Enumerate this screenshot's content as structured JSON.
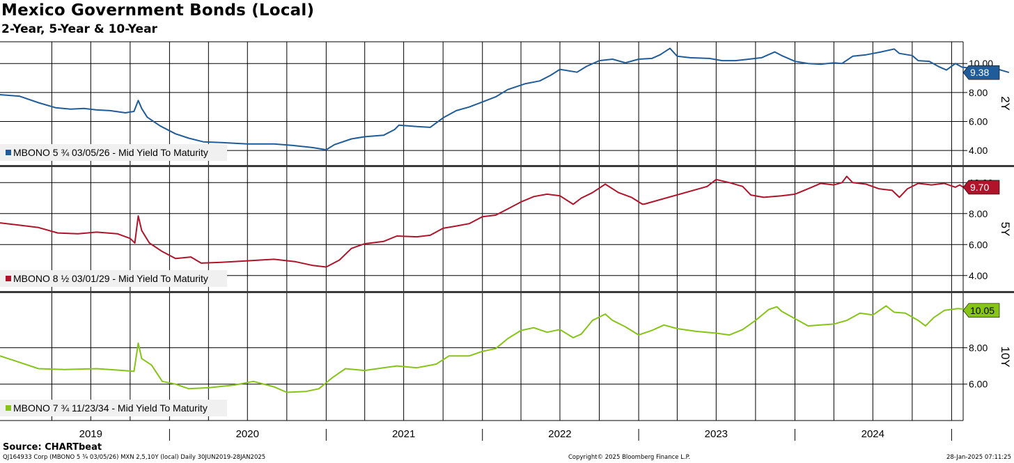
{
  "title": "Mexico Government Bonds (Local)",
  "subtitle": "2-Year, 5-Year & 10-Year",
  "source": "Source: CHARTbeat",
  "footer": {
    "left": "QJ164933 Corp (MBONO 5 ¾ 03/05/26) MXN 2,5,10Y (local)  Daily 30JUN2019-28JAN2025",
    "center": "Copyright© 2025 Bloomberg Finance L.P.",
    "right": "28-Jan-2025 07:11:25"
  },
  "chart_data": {
    "type": "line",
    "x_axis": {
      "range": [
        "2018-12-01",
        "2025-01-28"
      ],
      "year_labels": [
        "2019",
        "2020",
        "2021",
        "2022",
        "2023",
        "2024"
      ],
      "year_label_dates": [
        "2019-07-01",
        "2020-07-01",
        "2021-07-01",
        "2022-07-01",
        "2023-07-01",
        "2024-07-01"
      ],
      "gridline_dates": [
        "2019-04-01",
        "2019-07-01",
        "2019-10-01",
        "2020-01-01",
        "2020-04-01",
        "2020-07-01",
        "2020-10-01",
        "2021-01-01",
        "2021-04-01",
        "2021-07-01",
        "2021-10-01",
        "2022-01-01",
        "2022-04-01",
        "2022-07-01",
        "2022-10-01",
        "2023-01-01",
        "2023-04-01",
        "2023-07-01",
        "2023-10-01",
        "2024-01-01",
        "2024-04-01",
        "2024-07-01",
        "2024-10-01",
        "2025-01-01"
      ],
      "year_boundary_dates": [
        "2020-01-01",
        "2021-01-01",
        "2022-01-01",
        "2023-01-01",
        "2024-01-01",
        "2025-01-01"
      ]
    },
    "panels": [
      {
        "label": "2Y",
        "series_name": "MBONO 5 ¾ 03/05/26 - Mid Yield To Maturity",
        "color": "#1f5c99",
        "last_value": "9.38",
        "ylim": [
          3.0,
          11.5
        ],
        "yticks": [
          4.0,
          6.0,
          8.0,
          10.0
        ],
        "ytick_labels": [
          "4.00",
          "6.00",
          "8.00",
          "10.00"
        ],
        "points": [
          [
            "2018-12-01",
            7.85
          ],
          [
            "2019-01-15",
            7.75
          ],
          [
            "2019-03-01",
            7.3
          ],
          [
            "2019-04-10",
            6.95
          ],
          [
            "2019-05-15",
            6.85
          ],
          [
            "2019-06-15",
            6.9
          ],
          [
            "2019-07-15",
            6.8
          ],
          [
            "2019-08-15",
            6.75
          ],
          [
            "2019-09-20",
            6.6
          ],
          [
            "2019-10-10",
            6.7
          ],
          [
            "2019-10-20",
            7.45
          ],
          [
            "2019-10-28",
            6.9
          ],
          [
            "2019-11-10",
            6.3
          ],
          [
            "2019-12-10",
            5.7
          ],
          [
            "2020-01-15",
            5.15
          ],
          [
            "2020-02-15",
            4.85
          ],
          [
            "2020-03-20",
            4.6
          ],
          [
            "2020-05-01",
            4.55
          ],
          [
            "2020-07-01",
            4.45
          ],
          [
            "2020-09-01",
            4.45
          ],
          [
            "2020-10-15",
            4.35
          ],
          [
            "2020-12-01",
            4.2
          ],
          [
            "2021-01-01",
            4.05
          ],
          [
            "2021-01-20",
            4.4
          ],
          [
            "2021-03-01",
            4.8
          ],
          [
            "2021-04-01",
            4.95
          ],
          [
            "2021-05-15",
            5.05
          ],
          [
            "2021-06-10",
            5.45
          ],
          [
            "2021-06-20",
            5.75
          ],
          [
            "2021-08-01",
            5.65
          ],
          [
            "2021-09-01",
            5.6
          ],
          [
            "2021-10-01",
            6.25
          ],
          [
            "2021-11-01",
            6.75
          ],
          [
            "2021-12-01",
            7.0
          ],
          [
            "2022-01-01",
            7.35
          ],
          [
            "2022-02-01",
            7.7
          ],
          [
            "2022-03-01",
            8.2
          ],
          [
            "2022-04-10",
            8.6
          ],
          [
            "2022-05-15",
            8.8
          ],
          [
            "2022-06-10",
            9.2
          ],
          [
            "2022-07-01",
            9.6
          ],
          [
            "2022-08-10",
            9.4
          ],
          [
            "2022-09-01",
            9.8
          ],
          [
            "2022-10-01",
            10.2
          ],
          [
            "2022-11-01",
            10.3
          ],
          [
            "2022-12-01",
            10.05
          ],
          [
            "2023-01-01",
            10.3
          ],
          [
            "2023-02-01",
            10.35
          ],
          [
            "2023-02-20",
            10.6
          ],
          [
            "2023-03-15",
            11.05
          ],
          [
            "2023-04-01",
            10.5
          ],
          [
            "2023-05-01",
            10.4
          ],
          [
            "2023-06-15",
            10.35
          ],
          [
            "2023-07-15",
            10.2
          ],
          [
            "2023-08-15",
            10.2
          ],
          [
            "2023-09-15",
            10.3
          ],
          [
            "2023-10-15",
            10.4
          ],
          [
            "2023-11-15",
            10.8
          ],
          [
            "2023-12-01",
            10.55
          ],
          [
            "2024-01-01",
            10.15
          ],
          [
            "2024-02-01",
            10.0
          ],
          [
            "2024-03-01",
            9.95
          ],
          [
            "2024-04-01",
            10.05
          ],
          [
            "2024-04-20",
            10.0
          ],
          [
            "2024-05-15",
            10.5
          ],
          [
            "2024-06-15",
            10.6
          ],
          [
            "2024-07-20",
            10.8
          ],
          [
            "2024-08-20",
            11.0
          ],
          [
            "2024-09-01",
            10.7
          ],
          [
            "2024-10-01",
            10.55
          ],
          [
            "2024-10-15",
            10.2
          ],
          [
            "2024-11-10",
            10.15
          ],
          [
            "2024-12-01",
            9.8
          ],
          [
            "2024-12-20",
            9.55
          ],
          [
            "2025-01-10",
            10.0
          ],
          [
            "2025-01-25",
            9.75
          ],
          [
            "2025-02-20",
            9.65
          ],
          [
            "2025-03-15",
            9.5
          ],
          [
            "2025-04-01",
            9.78
          ],
          [
            "2025-04-20",
            9.6
          ],
          [
            "2025-05-15",
            9.38
          ]
        ]
      },
      {
        "label": "5Y",
        "series_name": "MBONO 8 ½ 03/01/29 - Mid Yield To Maturity",
        "color": "#b0142b",
        "last_value": "9.70",
        "ylim": [
          3.0,
          11.0
        ],
        "yticks": [
          4.0,
          6.0,
          8.0,
          10.0
        ],
        "ytick_labels": [
          "4.00",
          "6.00",
          "8.00",
          "10.00"
        ],
        "points": [
          [
            "2018-12-01",
            7.4
          ],
          [
            "2019-01-15",
            7.25
          ],
          [
            "2019-03-01",
            7.1
          ],
          [
            "2019-04-15",
            6.75
          ],
          [
            "2019-06-01",
            6.7
          ],
          [
            "2019-07-15",
            6.8
          ],
          [
            "2019-09-01",
            6.7
          ],
          [
            "2019-10-01",
            6.4
          ],
          [
            "2019-10-12",
            6.1
          ],
          [
            "2019-10-20",
            7.85
          ],
          [
            "2019-10-28",
            6.9
          ],
          [
            "2019-11-15",
            6.1
          ],
          [
            "2019-12-15",
            5.55
          ],
          [
            "2020-01-15",
            5.1
          ],
          [
            "2020-02-20",
            5.2
          ],
          [
            "2020-03-15",
            4.8
          ],
          [
            "2020-05-01",
            4.85
          ],
          [
            "2020-07-01",
            4.95
          ],
          [
            "2020-09-01",
            5.05
          ],
          [
            "2020-10-20",
            4.9
          ],
          [
            "2020-12-01",
            4.65
          ],
          [
            "2021-01-01",
            4.55
          ],
          [
            "2021-02-01",
            5.0
          ],
          [
            "2021-03-01",
            5.75
          ],
          [
            "2021-04-01",
            6.05
          ],
          [
            "2021-05-15",
            6.2
          ],
          [
            "2021-06-15",
            6.55
          ],
          [
            "2021-08-01",
            6.5
          ],
          [
            "2021-09-01",
            6.6
          ],
          [
            "2021-10-01",
            7.05
          ],
          [
            "2021-11-01",
            7.2
          ],
          [
            "2021-12-01",
            7.35
          ],
          [
            "2022-01-01",
            7.8
          ],
          [
            "2022-02-01",
            7.9
          ],
          [
            "2022-03-01",
            8.3
          ],
          [
            "2022-04-01",
            8.75
          ],
          [
            "2022-05-01",
            9.1
          ],
          [
            "2022-06-01",
            9.25
          ],
          [
            "2022-07-01",
            9.15
          ],
          [
            "2022-08-01",
            8.6
          ],
          [
            "2022-08-20",
            9.0
          ],
          [
            "2022-09-15",
            9.35
          ],
          [
            "2022-10-15",
            9.9
          ],
          [
            "2022-11-15",
            9.35
          ],
          [
            "2022-12-15",
            9.05
          ],
          [
            "2023-01-10",
            8.6
          ],
          [
            "2023-01-15",
            8.62
          ],
          [
            "2023-06-10",
            9.75
          ],
          [
            "2023-07-01",
            10.2
          ],
          [
            "2023-08-01",
            10.0
          ],
          [
            "2023-09-01",
            9.75
          ],
          [
            "2023-09-20",
            9.2
          ],
          [
            "2023-10-20",
            9.05
          ],
          [
            "2023-12-01",
            9.15
          ],
          [
            "2024-01-01",
            9.25
          ],
          [
            "2024-02-01",
            9.6
          ],
          [
            "2024-03-01",
            9.95
          ],
          [
            "2024-04-01",
            9.85
          ],
          [
            "2024-04-20",
            10.0
          ],
          [
            "2024-05-01",
            10.4
          ],
          [
            "2024-05-15",
            10.0
          ],
          [
            "2024-06-15",
            9.9
          ],
          [
            "2024-07-15",
            9.6
          ],
          [
            "2024-08-15",
            9.5
          ],
          [
            "2024-09-01",
            9.05
          ],
          [
            "2024-09-20",
            9.6
          ],
          [
            "2024-10-15",
            9.95
          ],
          [
            "2024-11-15",
            9.85
          ],
          [
            "2024-12-15",
            9.95
          ],
          [
            "2025-01-10",
            9.7
          ],
          [
            "2025-01-20",
            9.85
          ],
          [
            "2025-01-28",
            9.7
          ]
        ]
      },
      {
        "label": "10Y",
        "series_name": "MBONO 7 ¾ 11/23/34 - Mid Yield To Maturity",
        "color": "#86c417",
        "last_value": "10.05",
        "ylim": [
          4.0,
          11.0
        ],
        "yticks": [
          6.0,
          8.0
        ],
        "ytick_labels": [
          "6.00",
          "8.00"
        ],
        "points": [
          [
            "2018-12-01",
            7.55
          ],
          [
            "2019-01-15",
            7.2
          ],
          [
            "2019-03-01",
            6.85
          ],
          [
            "2019-05-01",
            6.8
          ],
          [
            "2019-07-15",
            6.85
          ],
          [
            "2019-09-15",
            6.75
          ],
          [
            "2019-10-10",
            6.7
          ],
          [
            "2019-10-20",
            8.25
          ],
          [
            "2019-10-28",
            7.4
          ],
          [
            "2019-11-20",
            7.05
          ],
          [
            "2019-12-15",
            6.15
          ],
          [
            "2020-01-15",
            6.0
          ],
          [
            "2020-02-15",
            5.75
          ],
          [
            "2020-04-01",
            5.8
          ],
          [
            "2020-06-01",
            5.95
          ],
          [
            "2020-07-15",
            6.15
          ],
          [
            "2020-09-01",
            5.85
          ],
          [
            "2020-10-01",
            5.55
          ],
          [
            "2020-11-15",
            5.6
          ],
          [
            "2020-12-15",
            5.75
          ],
          [
            "2021-01-15",
            6.35
          ],
          [
            "2021-02-15",
            6.85
          ],
          [
            "2021-04-01",
            6.75
          ],
          [
            "2021-05-15",
            6.9
          ],
          [
            "2021-06-15",
            7.0
          ],
          [
            "2021-08-01",
            6.9
          ],
          [
            "2021-09-15",
            7.1
          ],
          [
            "2021-10-15",
            7.55
          ],
          [
            "2021-12-01",
            7.55
          ],
          [
            "2022-01-01",
            7.8
          ],
          [
            "2022-02-01",
            7.95
          ],
          [
            "2022-03-01",
            8.5
          ],
          [
            "2022-04-01",
            8.95
          ],
          [
            "2022-05-01",
            9.1
          ],
          [
            "2022-06-01",
            8.85
          ],
          [
            "2022-07-01",
            9.0
          ],
          [
            "2022-08-01",
            8.55
          ],
          [
            "2022-08-20",
            8.75
          ],
          [
            "2022-09-15",
            9.5
          ],
          [
            "2022-10-15",
            9.85
          ],
          [
            "2022-11-01",
            9.5
          ],
          [
            "2022-12-01",
            9.15
          ],
          [
            "2023-01-01",
            8.7
          ],
          [
            "2023-02-01",
            8.95
          ],
          [
            "2023-03-01",
            9.25
          ],
          [
            "2023-04-01",
            9.05
          ],
          [
            "2023-05-15",
            8.9
          ],
          [
            "2023-07-01",
            8.8
          ],
          [
            "2023-08-01",
            8.7
          ],
          [
            "2023-09-01",
            9.0
          ],
          [
            "2023-10-01",
            9.5
          ],
          [
            "2023-11-01",
            10.1
          ],
          [
            "2023-11-20",
            10.25
          ],
          [
            "2023-12-01",
            10.0
          ],
          [
            "2024-01-01",
            9.6
          ],
          [
            "2024-02-01",
            9.2
          ],
          [
            "2024-03-01",
            9.25
          ],
          [
            "2024-04-01",
            9.3
          ],
          [
            "2024-05-01",
            9.5
          ],
          [
            "2024-06-01",
            9.9
          ],
          [
            "2024-07-01",
            9.8
          ],
          [
            "2024-08-01",
            10.3
          ],
          [
            "2024-08-20",
            9.95
          ],
          [
            "2024-09-15",
            9.9
          ],
          [
            "2024-10-15",
            9.5
          ],
          [
            "2024-11-01",
            9.2
          ],
          [
            "2024-11-20",
            9.65
          ],
          [
            "2024-12-15",
            10.05
          ],
          [
            "2025-01-15",
            10.15
          ],
          [
            "2025-02-15",
            10.1
          ],
          [
            "2025-03-20",
            10.4
          ],
          [
            "2025-04-01",
            10.2
          ],
          [
            "2025-04-20",
            10.05
          ]
        ]
      }
    ]
  }
}
